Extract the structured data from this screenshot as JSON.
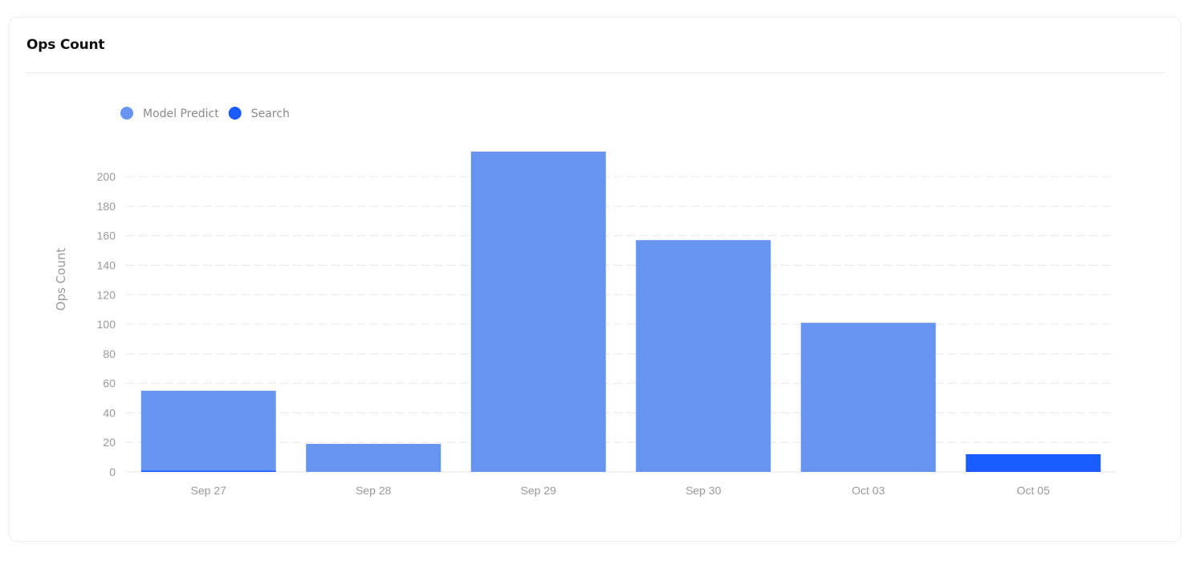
{
  "card": {
    "title": "Ops Count"
  },
  "colors": {
    "model_predict": "#6794f1",
    "search": "#1a5cff",
    "grid": "#e6e6e6",
    "axis_text": "#9a9a9a"
  },
  "chart_data": {
    "type": "bar",
    "stacked": true,
    "categories": [
      "Sep 27",
      "Sep 28",
      "Sep 29",
      "Sep 30",
      "Oct 03",
      "Oct 05"
    ],
    "series": [
      {
        "name": "Model Predict",
        "values": [
          54,
          19,
          217,
          157,
          101,
          0
        ],
        "color": "#6794f1"
      },
      {
        "name": "Search",
        "values": [
          1,
          0,
          0,
          0,
          0,
          12
        ],
        "color": "#1a5cff"
      }
    ],
    "ylabel": "Ops Count",
    "yticks": [
      0,
      20,
      40,
      60,
      80,
      100,
      120,
      140,
      160,
      180,
      200
    ],
    "ylim": [
      0,
      217
    ],
    "grid": true,
    "legend_position": "top-left"
  }
}
